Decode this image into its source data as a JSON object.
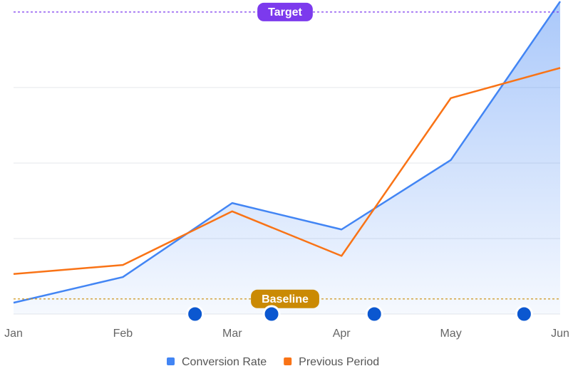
{
  "chart_data": {
    "type": "line",
    "categories": [
      "Jan",
      "Feb",
      "Mar",
      "Apr",
      "May",
      "Jun"
    ],
    "series": [
      {
        "name": "Conversion Rate",
        "color": "#4285f4",
        "values": [
          0.15,
          0.49,
          1.47,
          1.12,
          2.04,
          4.14
        ],
        "area": true
      },
      {
        "name": "Previous Period",
        "color": "#f97316",
        "values": [
          0.53,
          0.65,
          1.36,
          0.77,
          2.86,
          3.26
        ]
      }
    ],
    "ylim": [
      0,
      4.15
    ],
    "yticks": [
      0,
      1,
      2,
      3
    ],
    "grid": true,
    "annotations": [
      {
        "label": "Target",
        "value": 4,
        "color": "#7c3aed"
      },
      {
        "label": "Baseline",
        "value": 0.2,
        "color": "#ca8a04"
      }
    ],
    "event_markers": {
      "color": "#0b57d0",
      "x": [
        1.66,
        2.36,
        3.3,
        4.67
      ]
    },
    "legend": "bottom"
  }
}
